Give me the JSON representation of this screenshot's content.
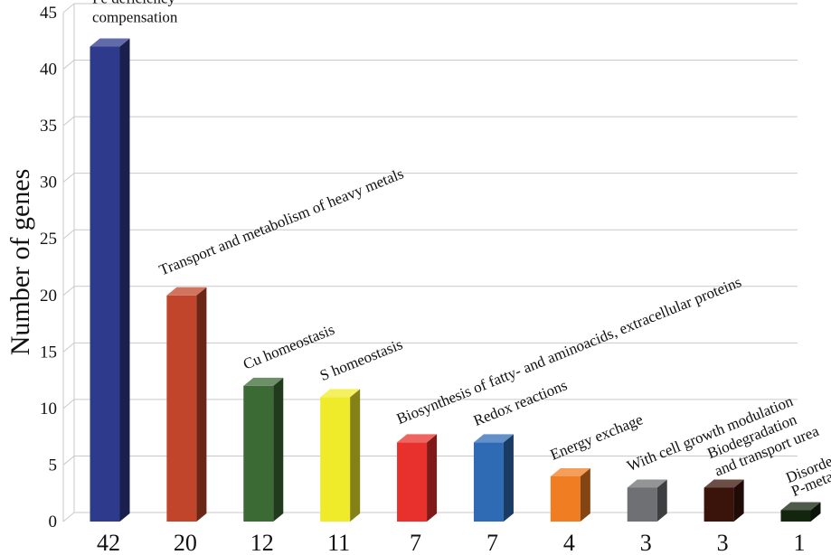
{
  "chart_data": {
    "type": "bar",
    "ylabel": "Number of genes",
    "ylim": [
      0,
      45
    ],
    "yticks": [
      0,
      5,
      10,
      15,
      20,
      25,
      30,
      35,
      40,
      45
    ],
    "grid": true,
    "categories": [
      [
        "Fe deficiency",
        "compensation"
      ],
      [
        "Transport and metabolism of heavy metals"
      ],
      [
        "Cu homeostasis"
      ],
      [
        "S homeostasis"
      ],
      [
        "Biosynthesis of fatty- and aminoacids, extracellular proteins"
      ],
      [
        "Redox reactions"
      ],
      [
        "Energy exchage"
      ],
      [
        "With cell growth modulation"
      ],
      [
        "Biodegradation",
        "and transport urea"
      ],
      [
        "Disorder of",
        "P-metabolism"
      ]
    ],
    "values": [
      42,
      20,
      12,
      11,
      7,
      7,
      4,
      3,
      3,
      1
    ],
    "tick_labels": [
      "42",
      "20",
      "12",
      "11",
      "7",
      "7",
      "4",
      "3",
      "3",
      "1"
    ],
    "colors": [
      "#2e3a8c",
      "#c0452a",
      "#3c6a35",
      "#f0eb2a",
      "#e8302c",
      "#2f6bb5",
      "#f07d22",
      "#6e7073",
      "#3a140a",
      "#13240f"
    ]
  }
}
